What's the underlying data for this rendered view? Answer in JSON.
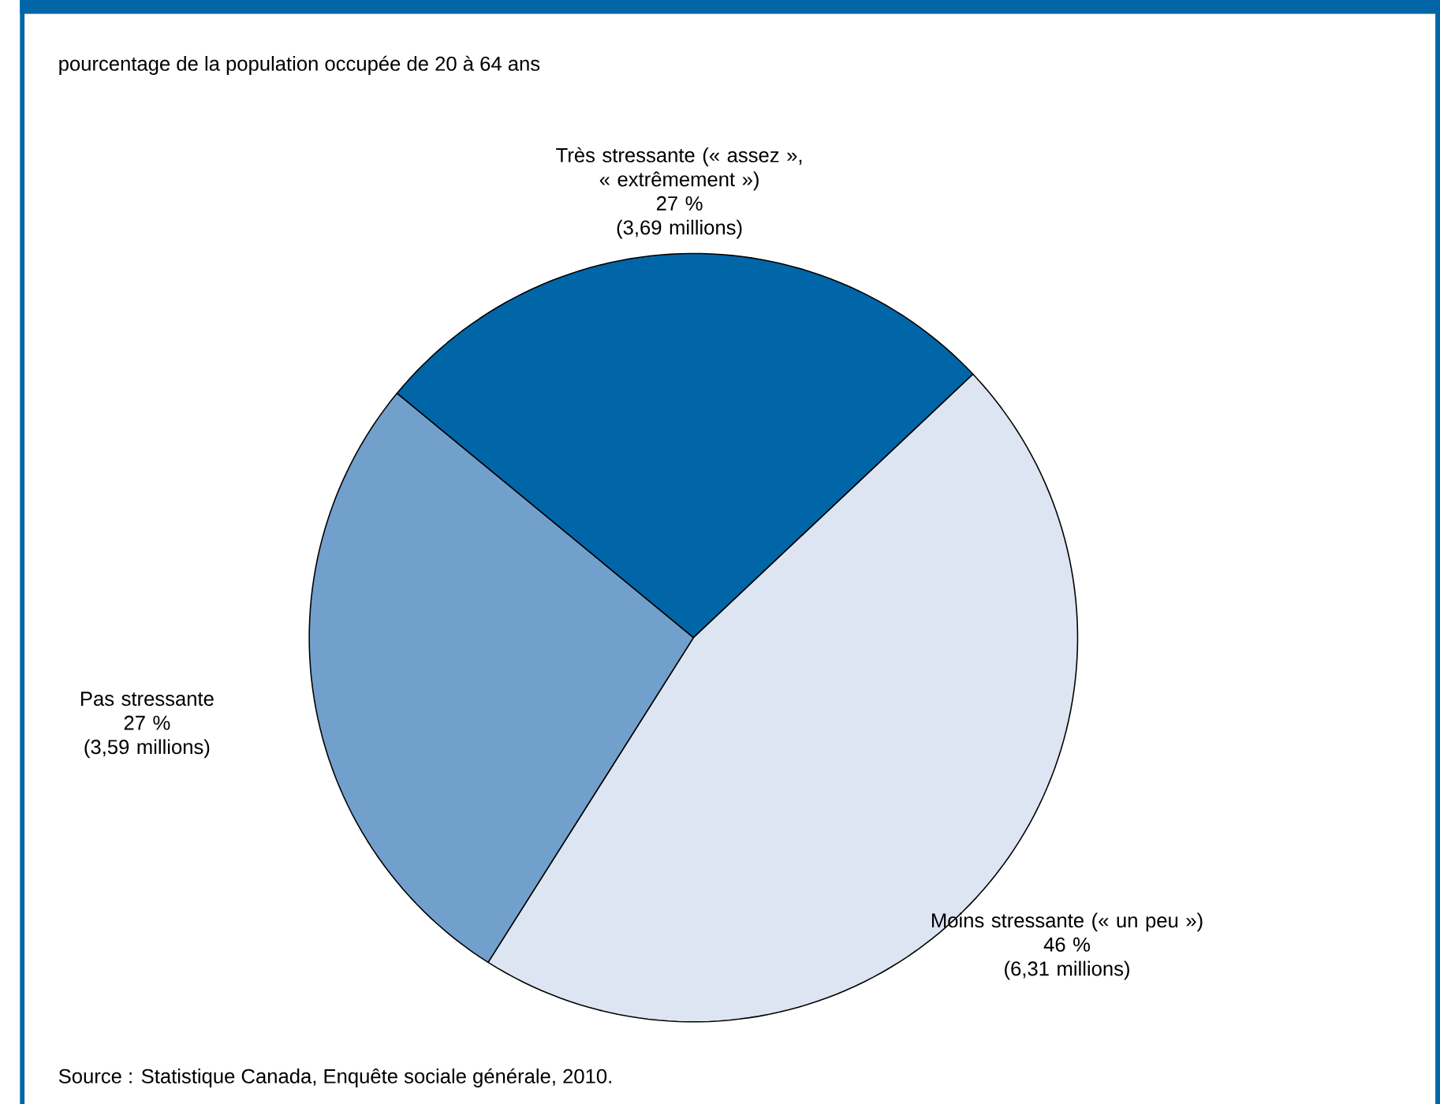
{
  "chart_data": {
    "type": "pie",
    "title": "pourcentage de la population occupée de 20 à 64 ans",
    "categories": [
      "Très stressante (« assez », « extrêmement »)",
      "Moins stressante (« un peu »)",
      "Pas stressante"
    ],
    "values": [
      27,
      46,
      27
    ],
    "value_labels": [
      "27 %",
      "46 %",
      "27 %"
    ],
    "colors": [
      "#0066a8",
      "#dce5f1",
      "#72a0cc"
    ],
    "annotations": [
      "(3,69 millions)",
      "(6,31 millions)",
      "(3,59 millions)",
      "Source : Statistique Canada, Enquête sociale générale, 2010."
    ]
  }
}
